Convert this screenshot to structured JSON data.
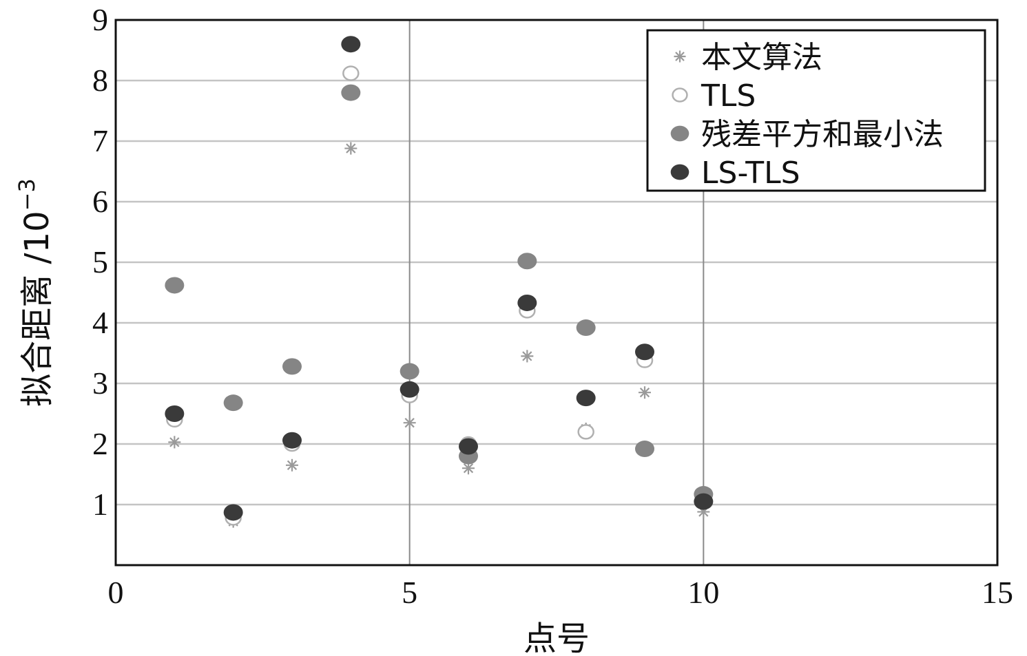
{
  "chart_data": {
    "type": "scatter",
    "title": "",
    "xlabel": "点号",
    "ylabel": "拟合距离 /10",
    "ylabel_exponent": "−3",
    "xlim": [
      0,
      15
    ],
    "ylim": [
      0,
      9
    ],
    "x_ticks": [
      0,
      5,
      10,
      15
    ],
    "y_ticks": [
      1,
      2,
      3,
      4,
      5,
      6,
      7,
      8,
      9
    ],
    "grid": true,
    "legend_position": "top-right",
    "series": [
      {
        "name": "本文算法",
        "marker": "asterisk",
        "color": "#9a9a9a",
        "points": [
          [
            1,
            2.03
          ],
          [
            2,
            0.72
          ],
          [
            3,
            1.65
          ],
          [
            4,
            6.88
          ],
          [
            5,
            2.35
          ],
          [
            6,
            1.6
          ],
          [
            7,
            3.45
          ],
          [
            8,
            2.25
          ],
          [
            9,
            2.85
          ],
          [
            10,
            0.88
          ]
        ]
      },
      {
        "name": "TLS",
        "marker": "circle-open",
        "color": "#b0b0b0",
        "points": [
          [
            1,
            2.4
          ],
          [
            2,
            0.78
          ],
          [
            3,
            2.0
          ],
          [
            4,
            8.12
          ],
          [
            5,
            2.8
          ],
          [
            6,
            2.0
          ],
          [
            7,
            4.2
          ],
          [
            8,
            2.2
          ],
          [
            9,
            3.38
          ],
          [
            10,
            1.05
          ]
        ]
      },
      {
        "name": "残差平方和最小法",
        "marker": "circle-filled",
        "color": "#858585",
        "points": [
          [
            1,
            4.62
          ],
          [
            2,
            2.68
          ],
          [
            3,
            3.28
          ],
          [
            4,
            7.8
          ],
          [
            5,
            3.2
          ],
          [
            6,
            1.8
          ],
          [
            7,
            5.02
          ],
          [
            8,
            3.92
          ],
          [
            9,
            1.92
          ],
          [
            10,
            1.17
          ]
        ]
      },
      {
        "name": "LS-TLS",
        "marker": "circle-filled",
        "color": "#3a3a3a",
        "points": [
          [
            1,
            2.5
          ],
          [
            2,
            0.87
          ],
          [
            3,
            2.06
          ],
          [
            4,
            8.6
          ],
          [
            5,
            2.9
          ],
          [
            6,
            1.96
          ],
          [
            7,
            4.33
          ],
          [
            8,
            2.76
          ],
          [
            9,
            3.52
          ],
          [
            10,
            1.05
          ]
        ]
      }
    ]
  }
}
